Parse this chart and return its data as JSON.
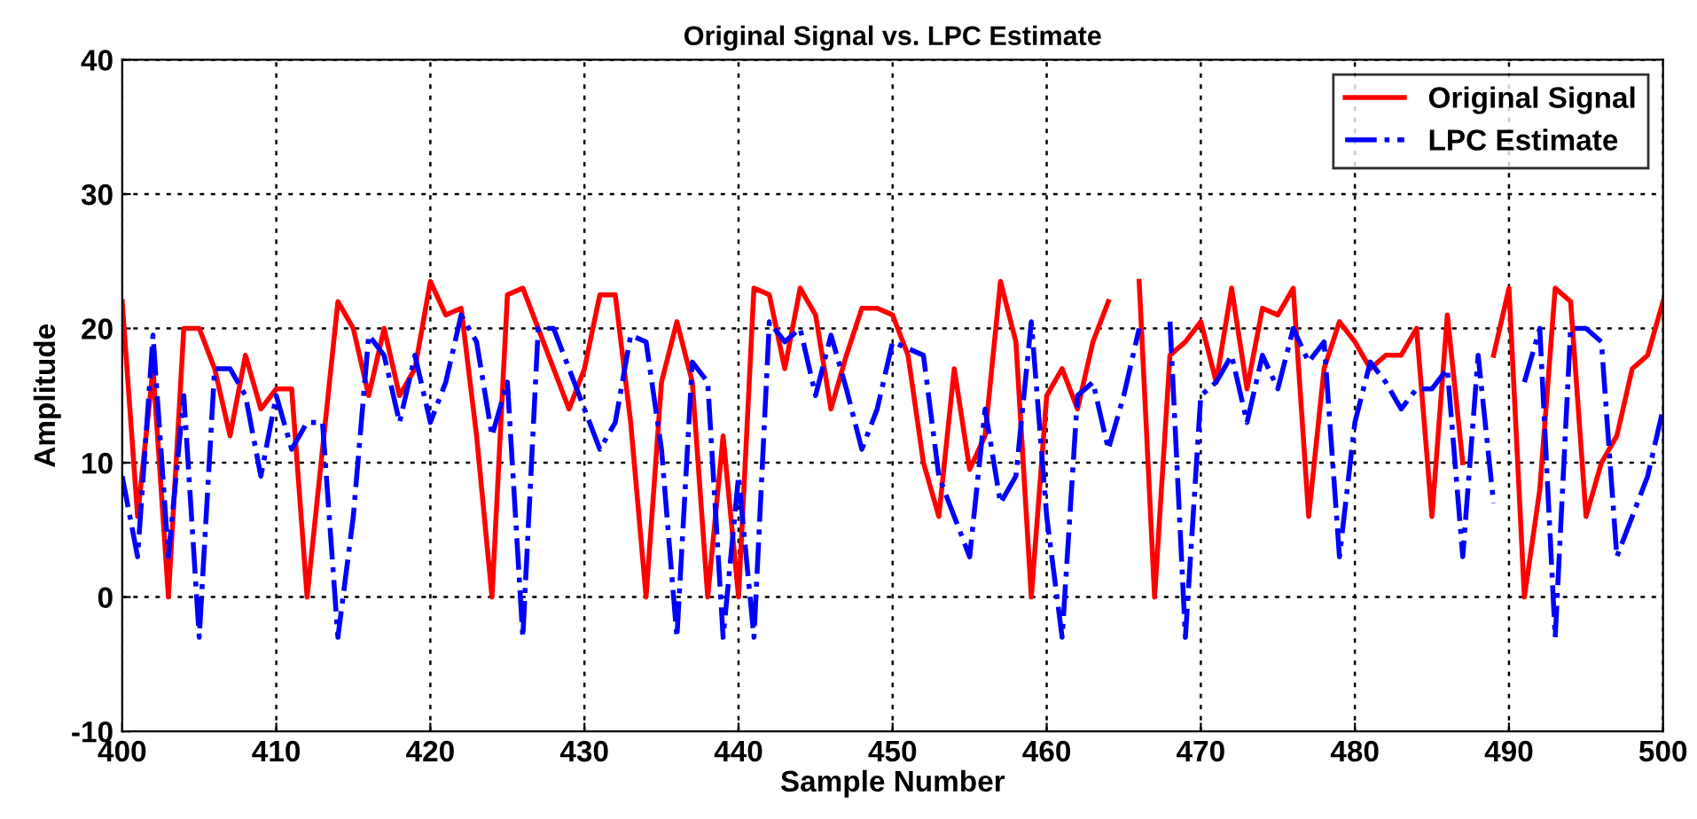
{
  "chart_data": {
    "type": "line",
    "title": "Original Signal vs. LPC Estimate",
    "xlabel": "Sample Number",
    "ylabel": "Amplitude",
    "x": [
      400,
      401,
      402,
      403,
      404,
      405,
      406,
      407,
      408,
      409,
      410,
      411,
      412,
      413,
      414,
      415,
      416,
      417,
      418,
      419,
      420,
      421,
      422,
      423,
      424,
      425,
      426,
      427,
      428,
      429,
      430,
      431,
      432,
      433,
      434,
      435,
      436,
      437,
      438,
      439,
      440,
      441,
      442,
      443,
      444,
      445,
      446,
      447,
      448,
      449,
      450,
      451,
      452,
      453,
      454,
      455,
      456,
      457,
      458,
      459,
      460,
      461,
      462,
      463,
      464,
      465,
      466,
      467,
      468,
      469,
      470,
      471,
      472,
      473,
      474,
      475,
      476,
      477,
      478,
      479,
      480,
      481,
      482,
      483,
      484,
      485,
      486,
      487,
      488,
      489,
      490,
      491,
      492,
      493,
      494,
      495,
      496,
      497,
      498,
      499,
      500
    ],
    "series": [
      {
        "name": "Original Signal",
        "color": "#ff0000",
        "line_style": "solid",
        "values": [
          22,
          6,
          17,
          0,
          20,
          20,
          17,
          12,
          18,
          14,
          15.5,
          15.5,
          0,
          11,
          22,
          20,
          15,
          20,
          15,
          17,
          23.5,
          21,
          21.5,
          12,
          0,
          22.5,
          23,
          20,
          17,
          14,
          17,
          22.5,
          22.5,
          13,
          0,
          16,
          20.5,
          16,
          0,
          12,
          0,
          23,
          22.5,
          17,
          23,
          21,
          14,
          18,
          21.5,
          21.5,
          21,
          18,
          10,
          6,
          17,
          9.5,
          12,
          23.5,
          19,
          0,
          15,
          17,
          14,
          19,
          22,
          null,
          23.5,
          0,
          18,
          19,
          20.5,
          16,
          23,
          15.5,
          21.5,
          21,
          23,
          6,
          17,
          20.5,
          19,
          17,
          18,
          18,
          20,
          6,
          21,
          10,
          null,
          18,
          23,
          0,
          8,
          23,
          22,
          6,
          10,
          12,
          17,
          18,
          22
        ]
      },
      {
        "name": "LPC Estimate",
        "color": "#0000ff",
        "line_style": "dashdot",
        "values": [
          9,
          3,
          19.5,
          3,
          15,
          -3,
          17,
          17,
          15,
          9,
          15,
          11,
          13,
          13,
          -3,
          6,
          19.5,
          18,
          13,
          18,
          13,
          16,
          21,
          19,
          12,
          16,
          -3,
          20,
          20,
          17,
          14,
          11,
          13,
          19.5,
          19,
          11,
          -3,
          17.5,
          16,
          -3,
          9,
          -3,
          20.5,
          19,
          20,
          15,
          19.5,
          15.5,
          11,
          14,
          19,
          18.5,
          18,
          9,
          6,
          3,
          14,
          7,
          9,
          20.5,
          6,
          -3,
          15,
          16,
          11,
          15,
          20,
          null,
          20.5,
          -3,
          15,
          16,
          18,
          13,
          18,
          15.5,
          20,
          17.5,
          19,
          3,
          13,
          17.5,
          16,
          14,
          15.5,
          15.5,
          17,
          3,
          18,
          7,
          null,
          16,
          20,
          -3,
          20,
          20,
          19,
          3,
          6,
          9,
          14
        ]
      }
    ],
    "xlim": [
      400,
      500
    ],
    "xticks": [
      400,
      410,
      420,
      430,
      440,
      450,
      460,
      470,
      480,
      490,
      500
    ],
    "ylim": [
      -10,
      40
    ],
    "yticks": [
      -10,
      0,
      10,
      20,
      30,
      40
    ],
    "grid": true,
    "legend": "top right"
  }
}
